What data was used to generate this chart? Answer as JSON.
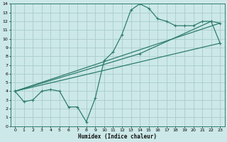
{
  "xlabel": "Humidex (Indice chaleur)",
  "background_color": "#cce8e8",
  "grid_color": "#aacccc",
  "line_color": "#2e7d6e",
  "xlim": [
    -0.5,
    23.5
  ],
  "ylim": [
    0,
    14
  ],
  "xticks": [
    0,
    1,
    2,
    3,
    4,
    5,
    6,
    7,
    8,
    9,
    10,
    11,
    12,
    13,
    14,
    15,
    16,
    17,
    18,
    19,
    20,
    21,
    22,
    23
  ],
  "yticks": [
    0,
    1,
    2,
    3,
    4,
    5,
    6,
    7,
    8,
    9,
    10,
    11,
    12,
    13,
    14
  ],
  "series1_x": [
    0,
    1,
    2,
    3,
    4,
    5,
    6,
    7,
    8,
    9,
    10,
    11,
    12,
    13,
    14,
    15,
    16,
    17,
    18,
    19,
    20,
    21,
    22,
    23
  ],
  "series1_y": [
    4.0,
    2.8,
    3.0,
    4.0,
    4.2,
    4.0,
    2.2,
    2.2,
    0.5,
    3.2,
    7.5,
    8.5,
    10.5,
    13.3,
    14.0,
    13.5,
    12.3,
    12.0,
    11.5,
    11.5,
    11.5,
    12.0,
    12.0,
    9.5
  ],
  "series2_x": [
    0,
    23
  ],
  "series2_y": [
    4.0,
    9.5
  ],
  "series3_x": [
    0,
    23
  ],
  "series3_y": [
    4.0,
    11.8
  ],
  "series4_x": [
    0,
    14,
    22,
    23
  ],
  "series4_y": [
    4.0,
    8.3,
    12.0,
    11.8
  ]
}
